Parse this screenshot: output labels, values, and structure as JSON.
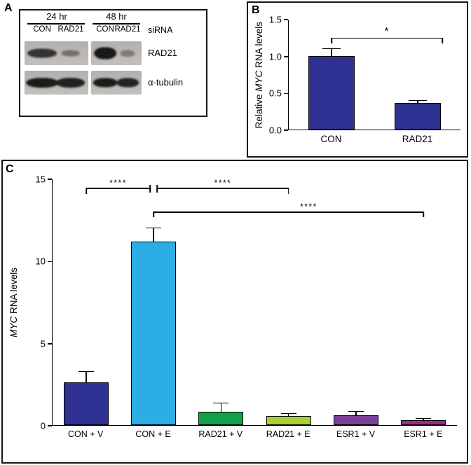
{
  "panel_a": {
    "label": "A",
    "timepoints": [
      "24 hr",
      "48 hr"
    ],
    "lane_labels": [
      "CON",
      "RAD21",
      "CON",
      "RAD21"
    ],
    "sirna_label": "siRNA",
    "blots": [
      {
        "target": "RAD21",
        "panels": [
          {
            "bands": [
              {
                "intensity": 0.8,
                "wf": 0.46,
                "hf": 0.38
              },
              {
                "intensity": 0.42,
                "wf": 0.3,
                "hf": 0.26
              }
            ]
          },
          {
            "bands": [
              {
                "intensity": 0.97,
                "wf": 0.44,
                "hf": 0.5
              },
              {
                "intensity": 0.36,
                "wf": 0.3,
                "hf": 0.28
              }
            ]
          }
        ]
      },
      {
        "target": "α-tubulin",
        "panels": [
          {
            "bands": [
              {
                "intensity": 0.95,
                "wf": 0.5,
                "hf": 0.4
              },
              {
                "intensity": 0.92,
                "wf": 0.46,
                "hf": 0.4
              }
            ]
          },
          {
            "bands": [
              {
                "intensity": 0.95,
                "wf": 0.48,
                "hf": 0.38
              },
              {
                "intensity": 0.9,
                "wf": 0.44,
                "hf": 0.38
              }
            ]
          }
        ]
      }
    ]
  },
  "panel_b": {
    "label": "B"
  },
  "panel_c": {
    "label": "C"
  },
  "chart_data": [
    {
      "panel": "B",
      "type": "bar",
      "title": "",
      "categories": [
        "CON",
        "RAD21"
      ],
      "values": [
        1.0,
        0.36
      ],
      "errors": [
        0.11,
        0.04
      ],
      "bar_colors": [
        "#2e3192",
        "#2e3192"
      ],
      "ylabel_parts": [
        {
          "text": "Relative ",
          "italic": false
        },
        {
          "text": "MYC",
          "italic": true
        },
        {
          "text": " RNA levels",
          "italic": false
        }
      ],
      "ylim": [
        0,
        1.5
      ],
      "yticks": [
        {
          "v": 0.0,
          "label": "0.0"
        },
        {
          "v": 0.5,
          "label": "0.5"
        },
        {
          "v": 1.0,
          "label": "1.0"
        },
        {
          "v": 1.5,
          "label": "1.5"
        }
      ],
      "grid": false,
      "legend": false,
      "significance": [
        {
          "from": 0,
          "to": 1,
          "y": 1.24,
          "label": "*",
          "x2_shift_pct": 14.5,
          "left_tick": "down",
          "right_tick": "down"
        }
      ]
    },
    {
      "panel": "C",
      "type": "bar",
      "title": "",
      "categories": [
        "CON + V",
        "CON + E",
        "RAD21 + V",
        "RAD21 + E",
        "ESR1 + V",
        "ESR1 + E"
      ],
      "values": [
        2.6,
        11.2,
        0.8,
        0.55,
        0.6,
        0.3
      ],
      "errors": [
        0.7,
        0.85,
        0.55,
        0.18,
        0.25,
        0.12
      ],
      "bar_colors": [
        "#2e3192",
        "#2aaee4",
        "#12a04a",
        "#a8cf38",
        "#7b3f98",
        "#a3248f"
      ],
      "ylabel_parts": [
        {
          "text": "MYC",
          "italic": true
        },
        {
          "text": " RNA levels",
          "italic": false
        }
      ],
      "ylim": [
        0,
        15
      ],
      "yticks": [
        {
          "v": 0,
          "label": "0"
        },
        {
          "v": 5,
          "label": "5"
        },
        {
          "v": 10,
          "label": "10"
        },
        {
          "v": 15,
          "label": "15"
        }
      ],
      "grid": false,
      "legend": false,
      "significance": [
        {
          "from": 0,
          "to": 1,
          "y": 14.4,
          "label": "****",
          "x2_shift_pct": -0.9,
          "left_tick": "down",
          "right_tick": "cross"
        },
        {
          "from": 1,
          "to": 3,
          "y": 14.4,
          "label": "****",
          "x1_shift_pct": 0.9,
          "left_tick": "cross",
          "right_tick": "down"
        },
        {
          "from": 1,
          "to": 5,
          "y": 12.95,
          "label": "****",
          "label_shift_pct": 5,
          "left_tick": "down",
          "right_tick": "down"
        }
      ]
    }
  ]
}
